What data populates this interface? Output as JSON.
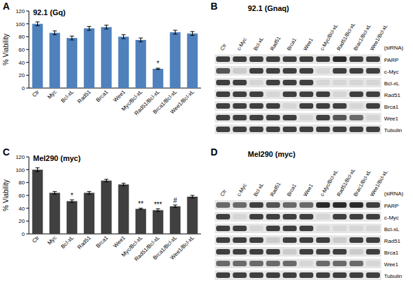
{
  "chart_data": [
    {
      "type": "bar",
      "panel": "A",
      "title": "92.1 (Gq)",
      "y_label": "% Viability",
      "categories": [
        "Ctr",
        "Myc",
        "Bcl-xL",
        "Rad51",
        "Brca1",
        "Wee1",
        "Myc/Bcl-xL",
        "Rad51/Bcl-xL",
        "Brca1/Bcl-xL",
        "Wee1/Bcl-xL"
      ],
      "values": [
        100,
        86,
        78,
        93,
        95,
        80,
        75,
        30,
        87,
        85
      ],
      "errors": [
        3,
        3,
        3,
        3,
        3,
        3,
        3,
        1,
        3,
        3
      ],
      "annotations": [
        null,
        null,
        null,
        null,
        null,
        null,
        null,
        "*",
        null,
        null
      ],
      "color": "#4f81bd",
      "ylim": [
        0,
        120
      ],
      "yticks": [
        0,
        20,
        40,
        60,
        80,
        100,
        120
      ],
      "grid": false
    },
    {
      "type": "bar",
      "panel": "C",
      "title": "Mel290 (myc)",
      "y_label": "% Viability",
      "categories": [
        "Ctr",
        "Myc",
        "Bcl-xL",
        "Rad51",
        "Brca1",
        "Wee1",
        "Myc/Bcl-xL",
        "Rad51/Bcl-xL",
        "Brca1/Bcl-xL",
        "Wee1/Bcl-xL"
      ],
      "values": [
        100,
        64,
        51,
        64,
        83,
        77,
        39,
        37,
        43,
        58
      ],
      "errors": [
        3,
        2,
        2,
        2,
        2,
        2,
        1,
        2,
        2,
        2
      ],
      "annotations": [
        null,
        null,
        "*",
        null,
        null,
        null,
        "**",
        "***",
        "#",
        null
      ],
      "color": "#404040",
      "ylim": [
        0,
        120
      ],
      "yticks": [
        0,
        20,
        40,
        60,
        80,
        100,
        120
      ],
      "grid": false
    }
  ],
  "blots": [
    {
      "panel": "B",
      "title": "92.1 (Gnaq)",
      "treatment": "(siRNA)",
      "lanes": [
        "Ctr",
        "c-Myc",
        "Bcl-xL",
        "Rad51",
        "Brca1",
        "Wee1",
        "c-Myc/Bcl-xL",
        "Rad51/Bcl-xL",
        "Brac1/Bcl-xL",
        "Wee1/Bcl-xL"
      ],
      "rows": [
        {
          "name": "PARP",
          "values": [
            0.8,
            0.8,
            0.8,
            0.8,
            0.8,
            0.8,
            0.8,
            0.9,
            0.8,
            0.8
          ]
        },
        {
          "name": "c-Myc",
          "values": [
            0.7,
            0.15,
            0.8,
            0.8,
            0.8,
            0.8,
            0.1,
            0.8,
            0.8,
            0.8
          ]
        },
        {
          "name": "Bcl-xL",
          "values": [
            0.8,
            0.8,
            0.1,
            0.8,
            0.8,
            0.8,
            0.1,
            0.1,
            0.1,
            0.1
          ]
        },
        {
          "name": "Rad51",
          "values": [
            0.8,
            0.8,
            0.8,
            0.1,
            0.8,
            0.8,
            0.8,
            0.1,
            0.8,
            0.8
          ]
        },
        {
          "name": "Brca1",
          "values": [
            0.8,
            0.8,
            0.8,
            0.8,
            0.1,
            0.8,
            0.8,
            0.8,
            0.1,
            0.8
          ]
        },
        {
          "name": "Wee1",
          "values": [
            0.8,
            0.8,
            0.8,
            0.8,
            0.8,
            0.1,
            0.8,
            0.7,
            0.6,
            0.1
          ]
        },
        {
          "name": "Tubulin",
          "values": [
            0.8,
            0.8,
            0.8,
            0.8,
            0.8,
            0.8,
            0.8,
            0.8,
            0.8,
            0.8
          ]
        }
      ]
    },
    {
      "panel": "D",
      "title": "Mel290 (myc)",
      "treatment": "(siRNA)",
      "lanes": [
        "Ctr",
        "c-Myc",
        "Bcl-xL",
        "Rad51",
        "Brca1",
        "Wee1",
        "c-Myc/Bcl-xL",
        "Rad51/Bcl-xL",
        "Brac1/Bcl-xL",
        "Wee1/Bcl-xL"
      ],
      "rows": [
        {
          "name": "PARP",
          "values": [
            0.6,
            0.6,
            0.8,
            0.7,
            0.6,
            0.6,
            0.9,
            0.9,
            0.9,
            0.8
          ]
        },
        {
          "name": "c-Myc",
          "values": [
            0.8,
            0.1,
            0.8,
            0.8,
            0.8,
            0.8,
            0.1,
            0.8,
            0.8,
            0.8
          ]
        },
        {
          "name": "Bcl-xL",
          "values": [
            0.8,
            0.8,
            0.1,
            0.8,
            0.8,
            0.8,
            0.1,
            0.1,
            0.1,
            0.1
          ]
        },
        {
          "name": "Rad51",
          "values": [
            0.8,
            0.8,
            0.8,
            0.15,
            0.8,
            0.8,
            0.8,
            0.15,
            0.8,
            0.8
          ]
        },
        {
          "name": "Brca1",
          "values": [
            0.8,
            0.8,
            0.8,
            0.8,
            0.15,
            0.8,
            0.8,
            0.8,
            0.15,
            0.8
          ]
        },
        {
          "name": "Wee1",
          "values": [
            0.6,
            0.6,
            0.6,
            0.6,
            0.6,
            0.1,
            0.6,
            0.6,
            0.6,
            0.1
          ]
        },
        {
          "name": "Tubulin",
          "values": [
            0.8,
            0.8,
            0.8,
            0.8,
            0.8,
            0.8,
            0.8,
            0.8,
            0.8,
            0.8
          ]
        }
      ]
    }
  ]
}
